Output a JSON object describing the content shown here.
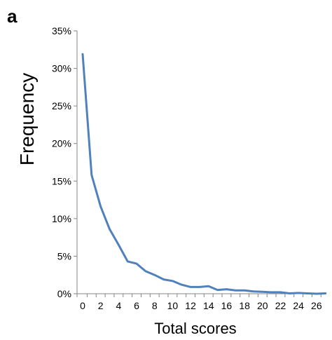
{
  "chart_data": {
    "type": "line",
    "panel_label": "a",
    "title": "",
    "xlabel": "Total scores",
    "ylabel": "Frequency",
    "xlim": [
      0,
      27
    ],
    "ylim": [
      0,
      35
    ],
    "x_ticks": [
      0,
      2,
      4,
      6,
      8,
      10,
      12,
      14,
      16,
      18,
      20,
      22,
      24,
      26
    ],
    "x_tick_labels": [
      "0",
      "2",
      "4",
      "6",
      "8",
      "10",
      "12",
      "14",
      "16",
      "18",
      "20",
      "22",
      "24",
      "26"
    ],
    "y_ticks": [
      0,
      5,
      10,
      15,
      20,
      25,
      30,
      35
    ],
    "y_tick_labels": [
      "0%",
      "5%",
      "10%",
      "15%",
      "20%",
      "25%",
      "30%",
      "35%"
    ],
    "grid": false,
    "legend": "none",
    "line_color": "#4f81bd",
    "series": [
      {
        "x": [
          0,
          1,
          2,
          3,
          4,
          5,
          6,
          7,
          8,
          9,
          10,
          11,
          12,
          13,
          14,
          15,
          16,
          17,
          18,
          19,
          20,
          21,
          22,
          23,
          24,
          25,
          26,
          27
        ],
        "values": [
          31.9,
          15.8,
          11.6,
          8.6,
          6.5,
          4.3,
          4.0,
          3.0,
          2.5,
          1.9,
          1.7,
          1.2,
          0.9,
          0.9,
          1.0,
          0.5,
          0.6,
          0.45,
          0.45,
          0.3,
          0.25,
          0.2,
          0.2,
          0.05,
          0.1,
          0.05,
          0.0,
          0.05
        ]
      }
    ]
  }
}
